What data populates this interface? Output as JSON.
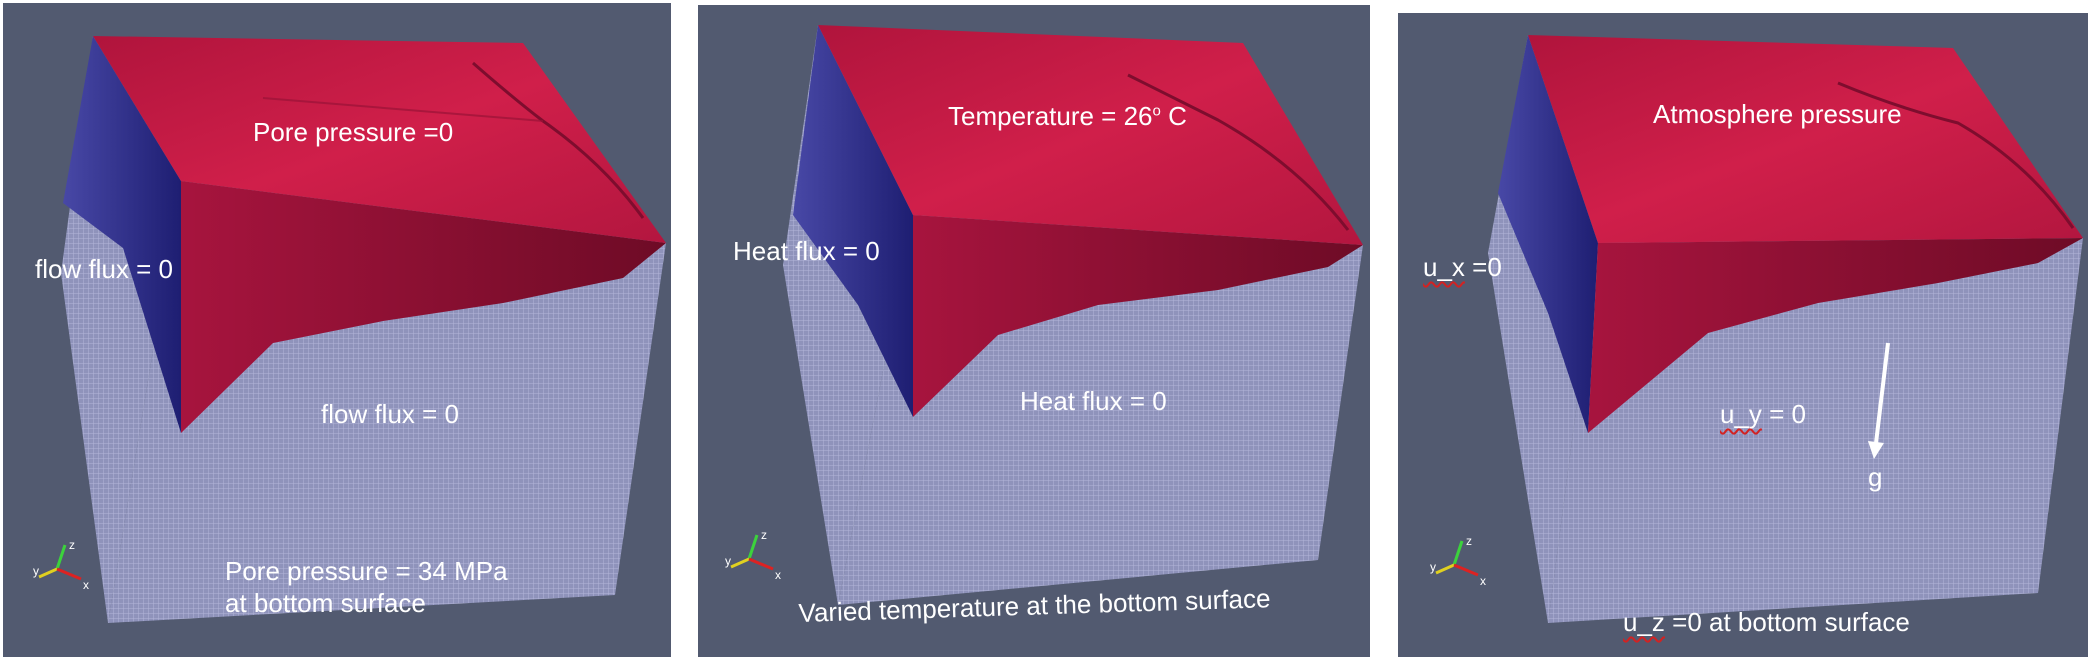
{
  "panels": [
    {
      "top": "Pore pressure  =0",
      "side": "flow flux = 0",
      "front": "flow flux = 0",
      "bottom_line1": "Pore pressure = 34 MPa",
      "bottom_line2": "at bottom surface"
    },
    {
      "top_prefix": "Temperature = 26",
      "top_sup": "o",
      "top_suffix": " C",
      "side": "Heat flux = 0",
      "front": "Heat flux = 0",
      "bottom": "Varied temperature at the bottom surface"
    },
    {
      "top": "Atmosphere pressure",
      "side_var": "u_x",
      "side_rest": " =0",
      "front_var": "u_y",
      "front_rest": " = 0",
      "gravity": "g",
      "bottom_var": "u_z",
      "bottom_rest": " =0 at bottom surface"
    }
  ],
  "axis_labels": {
    "x": "x",
    "y": "y",
    "z": "z"
  },
  "colors": {
    "background": "#525a70",
    "top_face": "#c21a44",
    "left_face": "#2a2a8a",
    "front_red": "#8e0f32",
    "mesh": "#9da0c8"
  }
}
